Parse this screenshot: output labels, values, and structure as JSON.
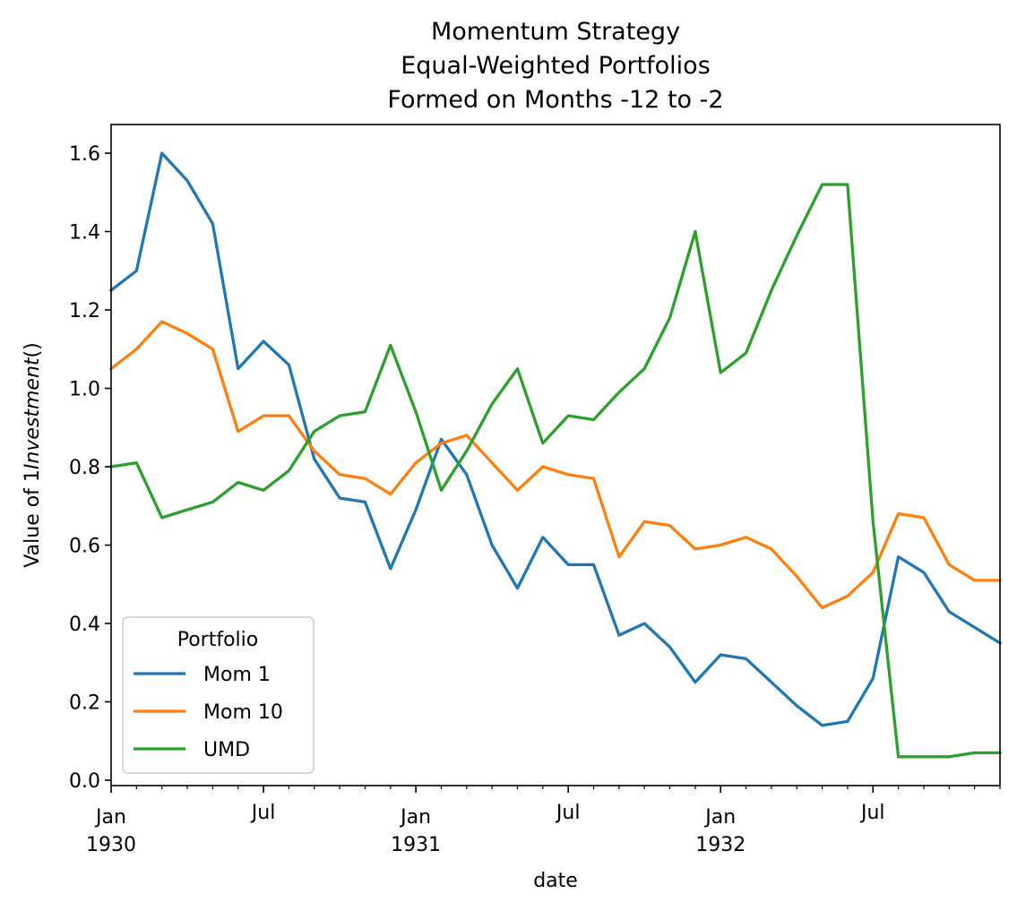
{
  "chart_data": {
    "type": "line",
    "title": [
      "Momentum Strategy",
      "Equal-Weighted Portfolios",
      "Formed on Months -12 to -2"
    ],
    "xlabel": "date",
    "ylabel_prefix": "Value of 1",
    "ylabel_italic": "Investment",
    "ylabel_suffix": "()",
    "ylim": [
      0.0,
      1.6
    ],
    "yticks": [
      "0.0",
      "0.2",
      "0.4",
      "0.6",
      "0.8",
      "1.0",
      "1.2",
      "1.4",
      "1.6"
    ],
    "xlim": [
      "1930-01",
      "1932-12"
    ],
    "x_major_ticks": [
      {
        "date": "1930-01",
        "label": "Jan",
        "sublabel": "1930"
      },
      {
        "date": "1930-07",
        "label": "Jul",
        "sublabel": ""
      },
      {
        "date": "1931-01",
        "label": "Jan",
        "sublabel": "1931"
      },
      {
        "date": "1931-07",
        "label": "Jul",
        "sublabel": ""
      },
      {
        "date": "1932-01",
        "label": "Jan",
        "sublabel": "1932"
      },
      {
        "date": "1932-07",
        "label": "Jul",
        "sublabel": ""
      }
    ],
    "grid": false,
    "legend": {
      "title": "Portfolio",
      "position": "lower-left"
    },
    "x": [
      "1930-01",
      "1930-02",
      "1930-03",
      "1930-04",
      "1930-05",
      "1930-06",
      "1930-07",
      "1930-08",
      "1930-09",
      "1930-10",
      "1930-11",
      "1930-12",
      "1931-01",
      "1931-02",
      "1931-03",
      "1931-04",
      "1931-05",
      "1931-06",
      "1931-07",
      "1931-08",
      "1931-09",
      "1931-10",
      "1931-11",
      "1931-12",
      "1932-01",
      "1932-02",
      "1932-03",
      "1932-04",
      "1932-05",
      "1932-06",
      "1932-07",
      "1932-08",
      "1932-09",
      "1932-10",
      "1932-11",
      "1932-12"
    ],
    "series": [
      {
        "name": "Mom 1",
        "color": "#1f77b4",
        "values": [
          1.25,
          1.3,
          1.6,
          1.53,
          1.42,
          1.05,
          1.12,
          1.06,
          0.82,
          0.72,
          0.71,
          0.54,
          0.69,
          0.87,
          0.78,
          0.6,
          0.49,
          0.62,
          0.55,
          0.55,
          0.37,
          0.4,
          0.34,
          0.25,
          0.32,
          0.31,
          0.25,
          0.19,
          0.14,
          0.15,
          0.26,
          0.57,
          0.53,
          0.43,
          0.39,
          0.35
        ]
      },
      {
        "name": "Mom 10",
        "color": "#ff7f0e",
        "values": [
          1.05,
          1.1,
          1.17,
          1.14,
          1.1,
          0.89,
          0.93,
          0.93,
          0.84,
          0.78,
          0.77,
          0.73,
          0.81,
          0.86,
          0.88,
          0.81,
          0.74,
          0.8,
          0.78,
          0.77,
          0.57,
          0.66,
          0.65,
          0.59,
          0.6,
          0.62,
          0.59,
          0.52,
          0.44,
          0.47,
          0.53,
          0.68,
          0.67,
          0.55,
          0.51,
          0.51
        ]
      },
      {
        "name": "UMD",
        "color": "#2ca02c",
        "values": [
          0.8,
          0.81,
          0.67,
          0.69,
          0.71,
          0.76,
          0.74,
          0.79,
          0.89,
          0.93,
          0.94,
          1.11,
          0.94,
          0.74,
          0.84,
          0.96,
          1.05,
          0.86,
          0.93,
          0.92,
          0.99,
          1.05,
          1.18,
          1.4,
          1.04,
          1.09,
          1.25,
          1.39,
          1.52,
          1.52,
          0.66,
          0.06,
          0.06,
          0.06,
          0.07,
          0.07
        ]
      }
    ]
  }
}
